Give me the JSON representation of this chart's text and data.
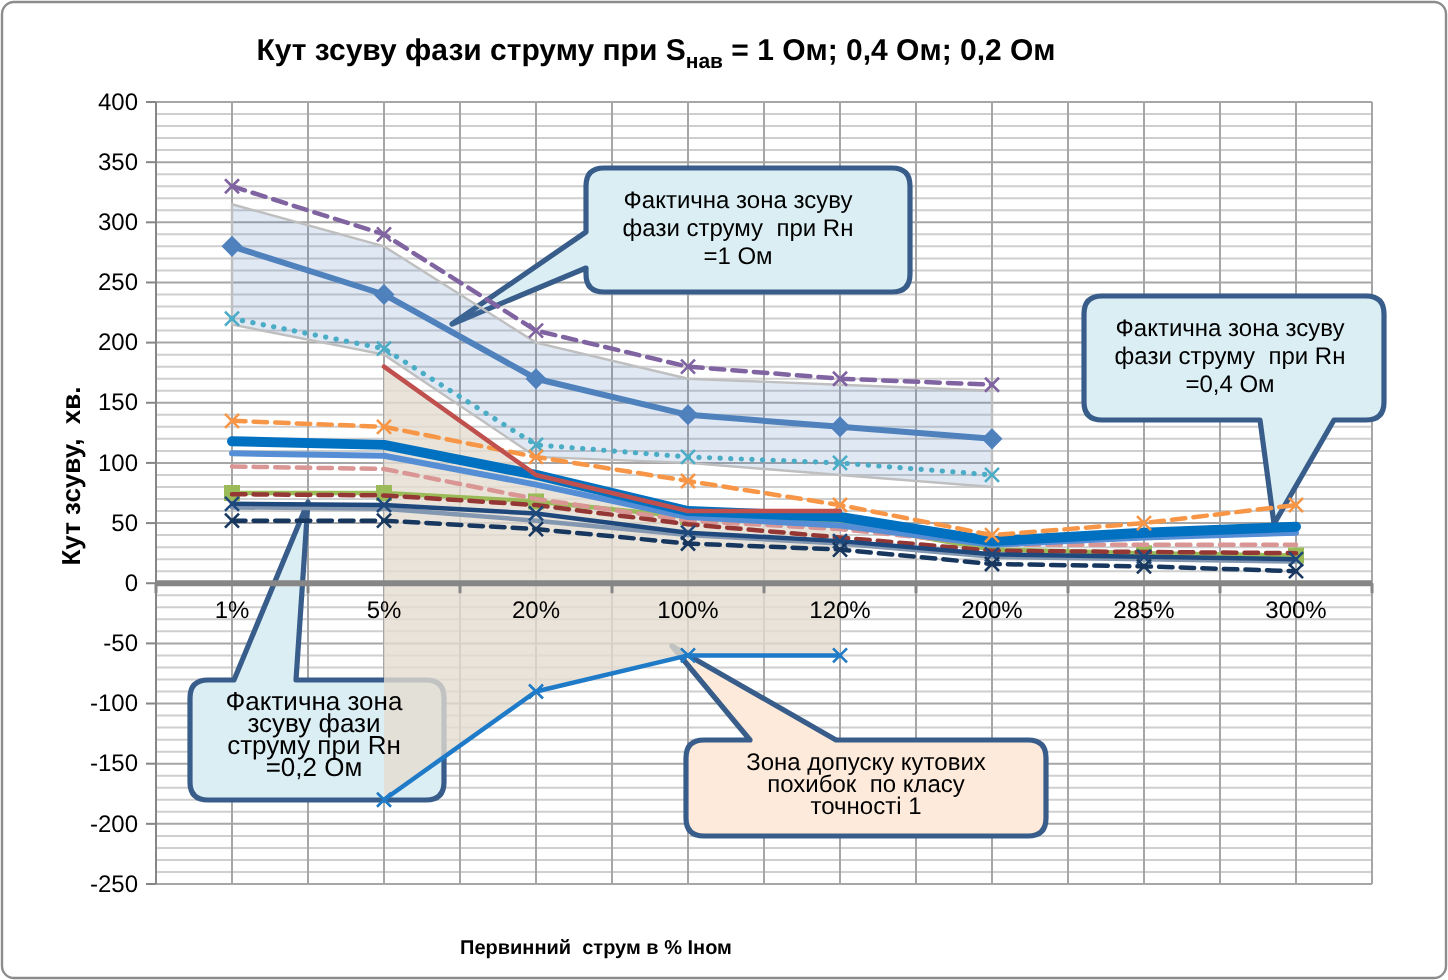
{
  "chart_data": {
    "type": "line",
    "title": "Кут зсуву фази струму при S$_{нав}$ = 1 Ом; 0,4 Ом; 0,2 Ом",
    "xlabel": "Первинний  струм в % Іном",
    "ylabel": "Кут зсуву,  хв.",
    "categories": [
      "1%",
      "5%",
      "20%",
      "100%",
      "120%",
      "200%",
      "285%",
      "300%"
    ],
    "ylim": [
      -250,
      400
    ],
    "yticks": [
      -250,
      -200,
      -150,
      -100,
      -50,
      0,
      50,
      100,
      150,
      200,
      250,
      300,
      350,
      400
    ],
    "grid": true,
    "series": [
      {
        "color": "#4f81bd",
        "marker": "diamond",
        "line_style": "solid",
        "values": [
          280,
          240,
          170,
          140,
          130,
          120,
          null,
          null
        ],
        "lower": [
          215,
          190,
          105,
          100,
          90,
          80,
          null,
          null
        ],
        "upper": [
          315,
          280,
          200,
          170,
          165,
          160,
          null,
          null
        ]
      },
      {
        "color": "#8064a2",
        "marker": "cross",
        "line_style": "dashed",
        "values": [
          330,
          290,
          210,
          180,
          170,
          165,
          null,
          null
        ]
      },
      {
        "color": "#4bacc6",
        "marker": "cross",
        "line_style": "dotted",
        "values": [
          220,
          195,
          115,
          105,
          100,
          90,
          null,
          null
        ]
      },
      {
        "color": "#9bbb59",
        "marker": "square",
        "line_style": "solid",
        "values": [
          75,
          75,
          68,
          55,
          50,
          28,
          25,
          23
        ]
      },
      {
        "color": "#d99694",
        "line_style": "dashed",
        "values": [
          97,
          95,
          70,
          52,
          45,
          32,
          32,
          32
        ]
      },
      {
        "color": "#953735",
        "line_style": "dashed",
        "values": [
          74,
          73,
          65,
          49,
          38,
          27,
          26,
          25
        ]
      },
      {
        "color": "#8497b0",
        "line_style": "solid",
        "values": [
          63,
          62,
          52,
          40,
          33,
          22,
          20,
          18
        ]
      },
      {
        "color": "#1f497d",
        "marker": "cross",
        "line_style": "solid",
        "values": [
          66,
          65,
          58,
          42,
          35,
          24,
          22,
          20
        ]
      },
      {
        "color": "#17375e",
        "marker": "cross",
        "line_style": "dashed",
        "values": [
          52,
          52,
          45,
          33,
          28,
          16,
          14,
          10
        ]
      },
      {
        "color": "#558ed5",
        "line_style": "solid",
        "values": [
          108,
          106,
          82,
          55,
          48,
          32,
          38,
          42
        ]
      },
      {
        "color": "#0070c0",
        "line_style": "solid",
        "values": [
          118,
          115,
          90,
          60,
          55,
          35,
          42,
          47
        ]
      },
      {
        "color": "#f79646",
        "marker": "cross",
        "line_style": "dashed",
        "values": [
          135,
          130,
          105,
          85,
          65,
          40,
          50,
          65
        ]
      },
      {
        "color": "#c0504d",
        "line_style": "solid",
        "values": [
          null,
          180,
          90,
          60,
          60,
          null,
          null,
          null
        ],
        "lower": [
          null,
          -180,
          -90,
          -60,
          -60,
          null,
          null,
          null
        ],
        "upper": [
          null,
          180,
          90,
          60,
          60,
          null,
          null,
          null
        ]
      },
      {
        "color": "#1f7bc8",
        "marker": "cross",
        "line_style": "solid",
        "values": [
          null,
          -180,
          -90,
          -60,
          -60,
          null,
          null,
          null
        ]
      }
    ],
    "annotations": [
      "Фактична зона зсуву фази струму  при Rн =1 Ом",
      "Фактична зона зсуву фази струму  при Rн =0,4 Ом",
      "Фактична зона зсуву фази струму при Rн =0,2 Ом",
      "Зона допуску кутових похибок  по класу точності 1"
    ]
  }
}
